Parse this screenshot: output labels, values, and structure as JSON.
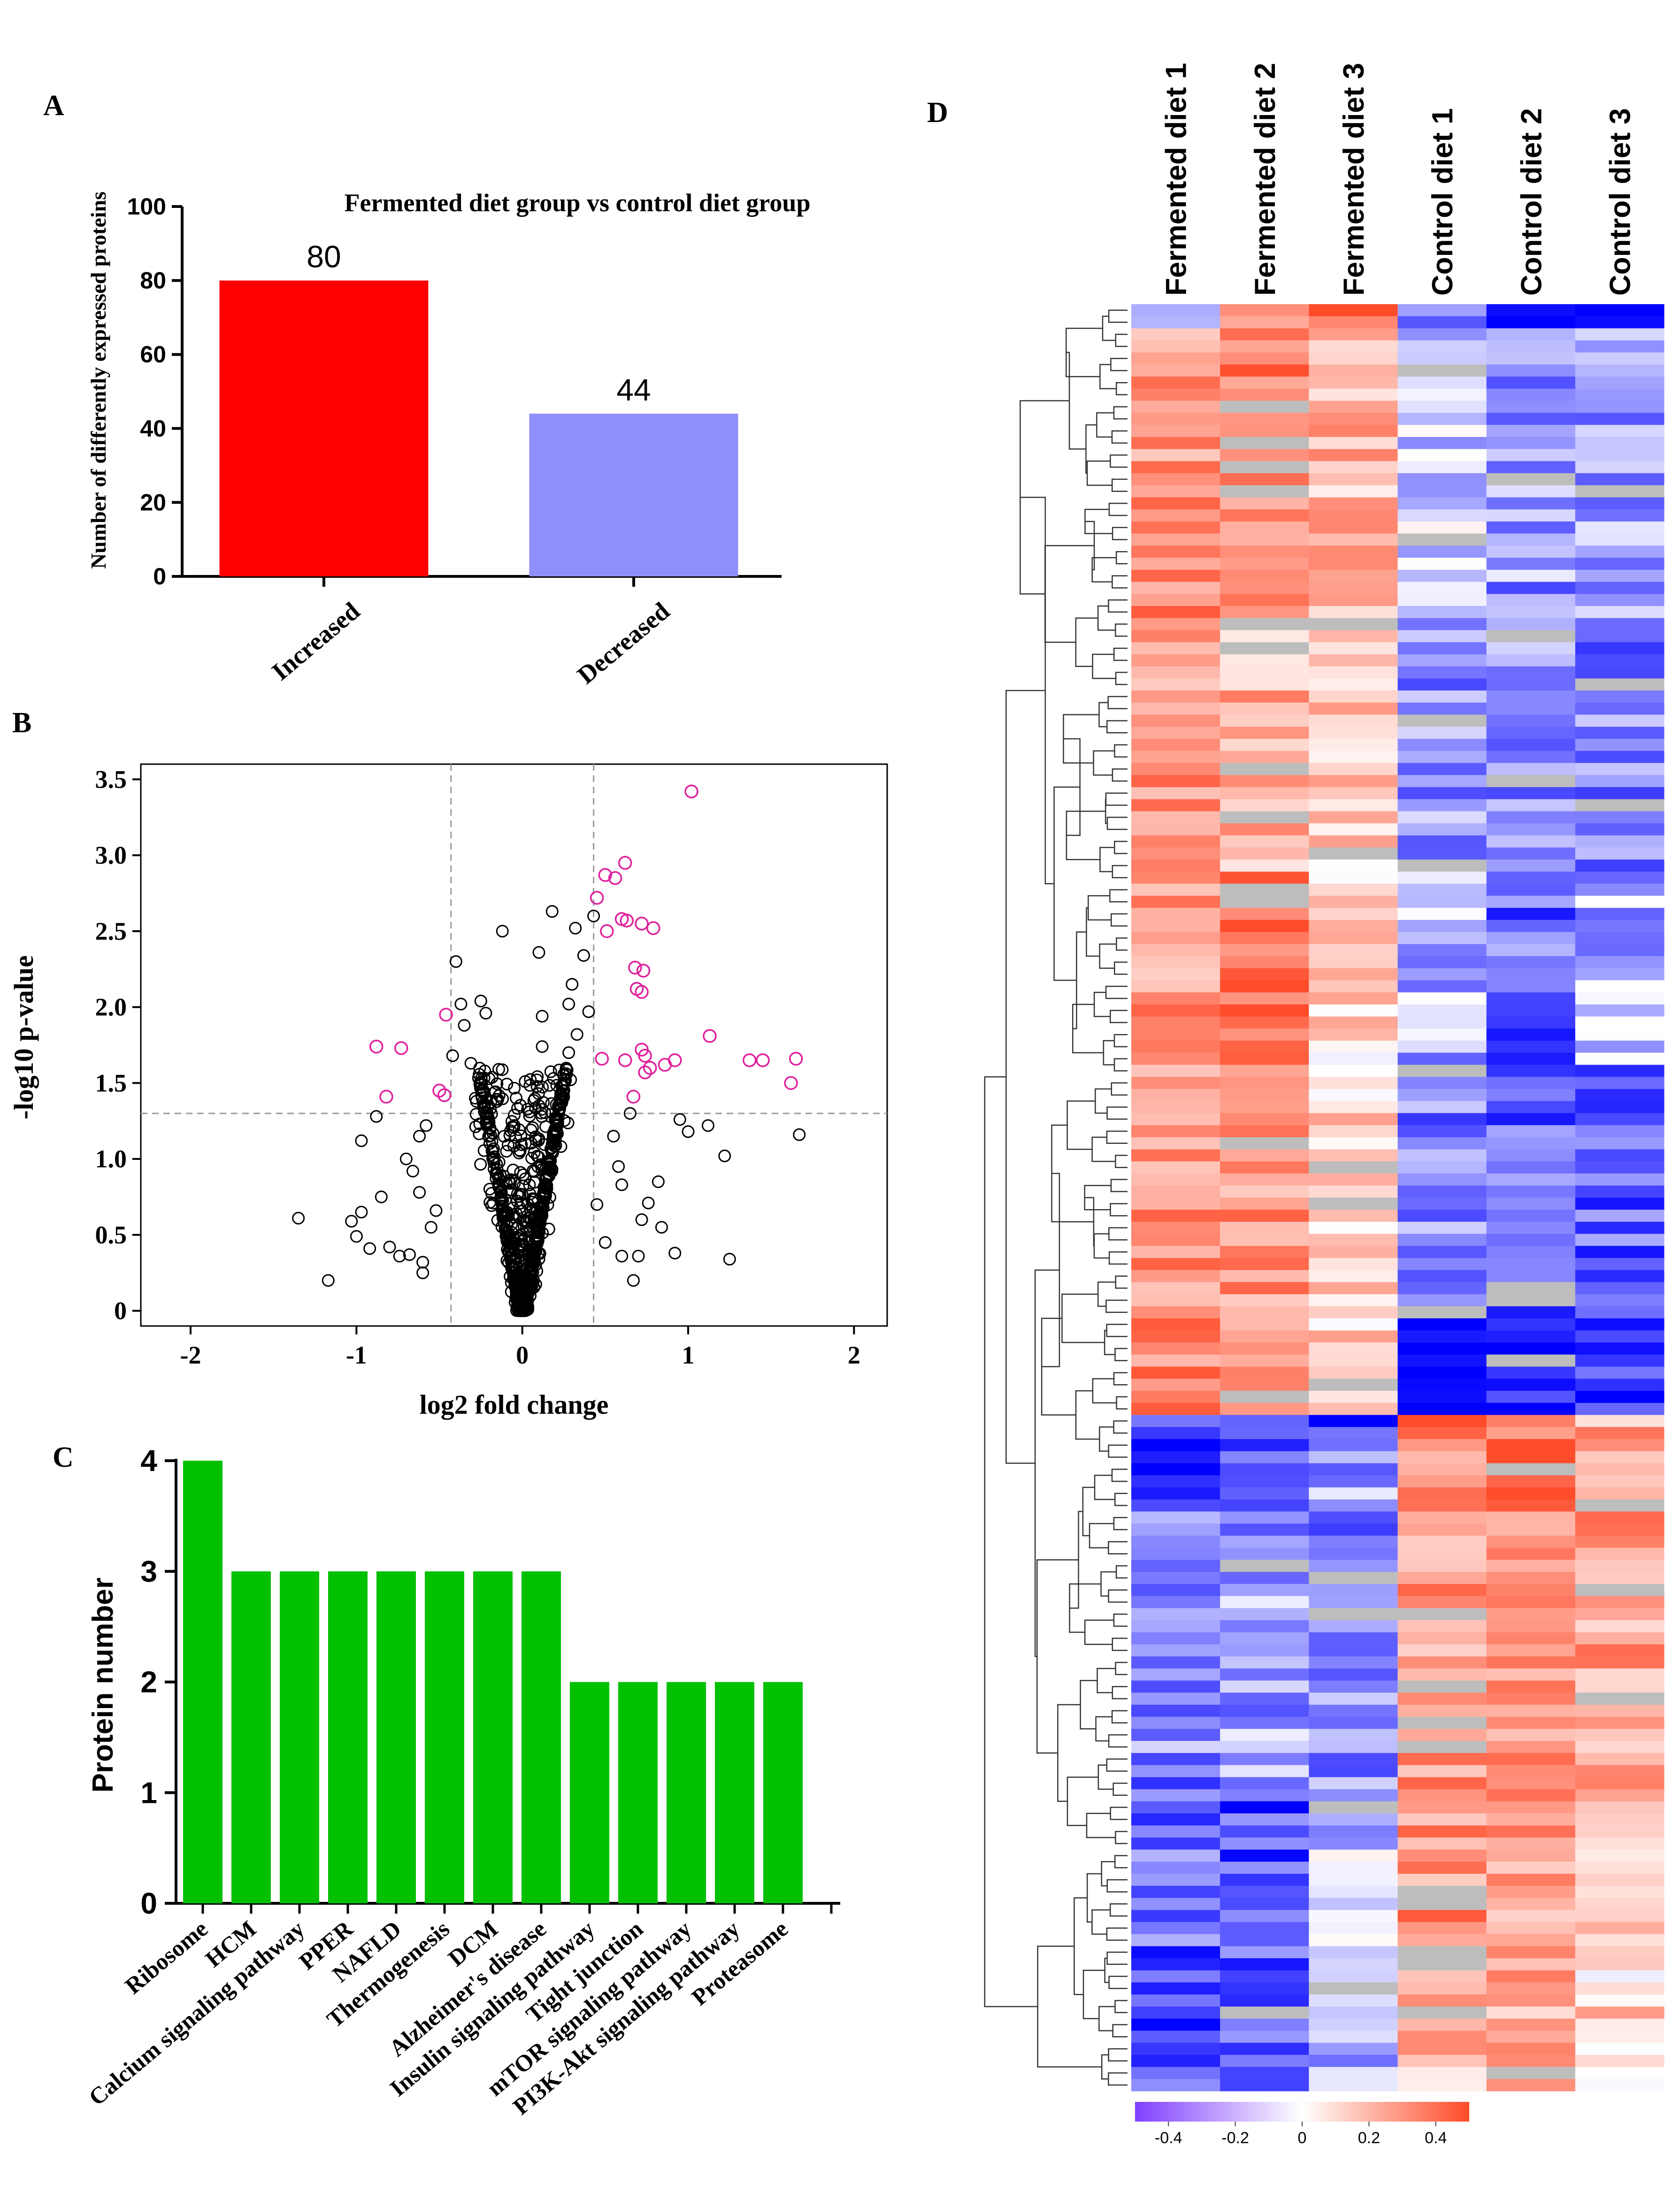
{
  "panel_labels": {
    "a": "A",
    "b": "B",
    "c": "C",
    "d": "D"
  },
  "colors": {
    "increased": "#ff0000",
    "decreased": "#8f8ffb",
    "pathway_bar": "#00c000",
    "volcano_sig": "#e0209c",
    "volcano_nonsig": "#000000",
    "heat_low": "#0000ff",
    "heat_mid": "#ffffff",
    "heat_high": "#ff4c2a",
    "heat_missing": "#bdbdbd"
  },
  "chart_data": [
    {
      "id": "A",
      "type": "bar",
      "title": "Fermented diet group vs control diet group",
      "ylabel": "Number of differently expressed proteins",
      "xlabel": "",
      "categories": [
        "Increased",
        "Decreased"
      ],
      "values": [
        80,
        44
      ],
      "data_labels": [
        "80",
        "44"
      ],
      "ylim": [
        0,
        100
      ],
      "yticks": [
        "0",
        "20",
        "40",
        "60",
        "80",
        "100"
      ]
    },
    {
      "id": "B",
      "type": "scatter",
      "title": "",
      "xlabel": "log2 fold change",
      "ylabel": "-log10 p-value",
      "xlim": [
        -2.3,
        2.2
      ],
      "ylim": [
        -0.1,
        3.6
      ],
      "xticks": [
        "-2",
        "-1",
        "0",
        "1",
        "2"
      ],
      "yticks": [
        "0",
        "0.5",
        "1.0",
        "1.5",
        "2.0",
        "2.5",
        "3.0",
        "3.5"
      ],
      "threshold_lines": {
        "x": [
          -0.43,
          0.43
        ],
        "y": [
          1.3
        ]
      },
      "series": [
        {
          "role": "significant",
          "points": [
            [
              1.02,
              3.42
            ],
            [
              0.62,
              2.95
            ],
            [
              0.5,
              2.87
            ],
            [
              0.56,
              2.85
            ],
            [
              0.45,
              2.72
            ],
            [
              0.6,
              2.58
            ],
            [
              0.63,
              2.57
            ],
            [
              0.51,
              2.5
            ],
            [
              0.72,
              2.55
            ],
            [
              0.79,
              2.52
            ],
            [
              0.68,
              2.26
            ],
            [
              0.73,
              2.24
            ],
            [
              0.69,
              2.12
            ],
            [
              0.72,
              2.1
            ],
            [
              1.13,
              1.81
            ],
            [
              0.72,
              1.72
            ],
            [
              0.74,
              1.68
            ],
            [
              0.62,
              1.65
            ],
            [
              0.86,
              1.62
            ],
            [
              0.92,
              1.65
            ],
            [
              0.77,
              1.6
            ],
            [
              0.74,
              1.57
            ],
            [
              1.37,
              1.65
            ],
            [
              1.45,
              1.65
            ],
            [
              1.65,
              1.66
            ],
            [
              1.62,
              1.5
            ],
            [
              0.67,
              1.41
            ],
            [
              0.48,
              1.66
            ],
            [
              -0.46,
              1.95
            ],
            [
              -0.5,
              1.45
            ],
            [
              -0.47,
              1.42
            ],
            [
              -0.88,
              1.74
            ],
            [
              -0.73,
              1.73
            ],
            [
              -0.82,
              1.41
            ]
          ]
        },
        {
          "role": "not significant",
          "points": [
            [
              -1.35,
              0.61
            ],
            [
              -1.17,
              0.2
            ],
            [
              -1.03,
              0.59
            ],
            [
              -0.97,
              0.65
            ],
            [
              -1.0,
              0.49
            ],
            [
              -0.92,
              0.41
            ],
            [
              -0.8,
              0.42
            ],
            [
              -0.74,
              0.36
            ],
            [
              -0.68,
              0.37
            ],
            [
              -0.97,
              1.12
            ],
            [
              -0.88,
              1.28
            ],
            [
              -0.62,
              1.15
            ],
            [
              -0.55,
              0.55
            ],
            [
              -0.62,
              0.78
            ],
            [
              -0.66,
              0.92
            ],
            [
              -0.7,
              1.0
            ],
            [
              -0.6,
              0.32
            ],
            [
              -0.52,
              0.66
            ],
            [
              -0.4,
              2.3
            ],
            [
              -0.12,
              2.5
            ],
            [
              -0.25,
              2.04
            ],
            [
              -0.22,
              1.96
            ],
            [
              -0.37,
              2.02
            ],
            [
              -0.35,
              1.88
            ],
            [
              -0.42,
              1.68
            ],
            [
              -0.31,
              1.63
            ],
            [
              0.18,
              2.63
            ],
            [
              0.1,
              2.36
            ],
            [
              0.32,
              2.52
            ],
            [
              0.43,
              2.6
            ],
            [
              0.37,
              2.34
            ],
            [
              0.3,
              2.15
            ],
            [
              0.28,
              2.02
            ],
            [
              0.4,
              1.97
            ],
            [
              0.33,
              1.82
            ],
            [
              0.12,
              1.94
            ],
            [
              0.12,
              1.74
            ],
            [
              0.28,
              1.7
            ],
            [
              1.0,
              1.18
            ],
            [
              0.95,
              1.26
            ],
            [
              1.12,
              1.22
            ],
            [
              1.22,
              1.02
            ],
            [
              1.67,
              1.16
            ],
            [
              1.25,
              0.34
            ],
            [
              0.92,
              0.38
            ],
            [
              0.67,
              0.2
            ],
            [
              0.7,
              0.36
            ],
            [
              0.84,
              0.55
            ],
            [
              0.76,
              0.71
            ],
            [
              0.82,
              0.85
            ],
            [
              0.6,
              0.83
            ],
            [
              0.58,
              0.95
            ],
            [
              0.55,
              1.15
            ],
            [
              0.65,
              1.3
            ],
            [
              0.5,
              0.45
            ],
            [
              0.6,
              0.36
            ],
            [
              0.45,
              0.7
            ],
            [
              0.72,
              0.6
            ],
            [
              -0.85,
              0.75
            ],
            [
              -0.58,
              1.22
            ],
            [
              -0.6,
              0.25
            ]
          ],
          "cloud": {
            "count": 850,
            "x_range": [
              -0.55,
              0.55
            ],
            "y_range": [
              0,
              1.6
            ],
            "note": "dense V-shaped cluster around (0, 0)"
          }
        }
      ]
    },
    {
      "id": "C",
      "type": "bar",
      "title": "",
      "xlabel": "",
      "ylabel": "Protein number",
      "categories": [
        "Ribosome",
        "HCM",
        "Calcium signaling pathway",
        "PPER",
        "NAFLD",
        "Thermogenesis",
        "DCM",
        "Alzheimer's disease",
        "Insulin signaling pathway",
        "Tight junction",
        "mTOR signaling pathway",
        "PI3K-Akt signaling pathway",
        "Proteasome"
      ],
      "values": [
        4,
        3,
        3,
        3,
        3,
        3,
        3,
        3,
        2,
        2,
        2,
        2,
        2
      ],
      "ylim": [
        0,
        4
      ],
      "yticks": [
        "0",
        "1",
        "2",
        "3",
        "4"
      ]
    },
    {
      "id": "D",
      "type": "heatmap",
      "title": "",
      "columns": [
        "Fermented diet 1",
        "Fermented diet 2",
        "Fermented diet 3",
        "Control diet 1",
        "Control diet 2",
        "Control diet 3"
      ],
      "color_scale": {
        "min": -0.5,
        "max": 0.5,
        "ticks": [
          "-0.4",
          "-0.2",
          "0",
          "0.2",
          "0.4"
        ]
      },
      "row_clusters": [
        {
          "rows": 2,
          "means": [
            -0.05,
            0.25,
            0.45,
            -0.3,
            -0.55,
            -0.6
          ]
        },
        {
          "rows": 24,
          "means": [
            0.3,
            0.34,
            0.2,
            -0.12,
            -0.2,
            -0.2
          ]
        },
        {
          "rows": 21,
          "means": [
            0.28,
            0.22,
            0.14,
            -0.2,
            -0.2,
            -0.25
          ]
        },
        {
          "rows": 16,
          "means": [
            0.28,
            0.42,
            0.12,
            -0.15,
            -0.3,
            -0.15
          ]
        },
        {
          "rows": 20,
          "means": [
            0.3,
            0.3,
            0.12,
            -0.25,
            -0.32,
            -0.3
          ]
        },
        {
          "rows": 9,
          "means": [
            0.35,
            0.35,
            0.12,
            -0.48,
            -0.45,
            -0.4
          ]
        },
        {
          "rows": 1,
          "means": [
            -0.15,
            -0.45,
            -0.5,
            0.48,
            0.4,
            0.2
          ]
        },
        {
          "rows": 7,
          "means": [
            -0.45,
            -0.4,
            -0.2,
            0.3,
            0.38,
            0.25
          ]
        },
        {
          "rows": 22,
          "means": [
            -0.22,
            -0.18,
            -0.22,
            0.28,
            0.3,
            0.26
          ]
        },
        {
          "rows": 14,
          "means": [
            -0.28,
            -0.35,
            -0.12,
            0.3,
            0.25,
            0.2
          ]
        },
        {
          "rows": 12,
          "means": [
            -0.35,
            -0.32,
            -0.15,
            0.2,
            0.22,
            0.12
          ]
        }
      ],
      "dendrogram": "hierarchical clustering of rows (left)"
    }
  ]
}
